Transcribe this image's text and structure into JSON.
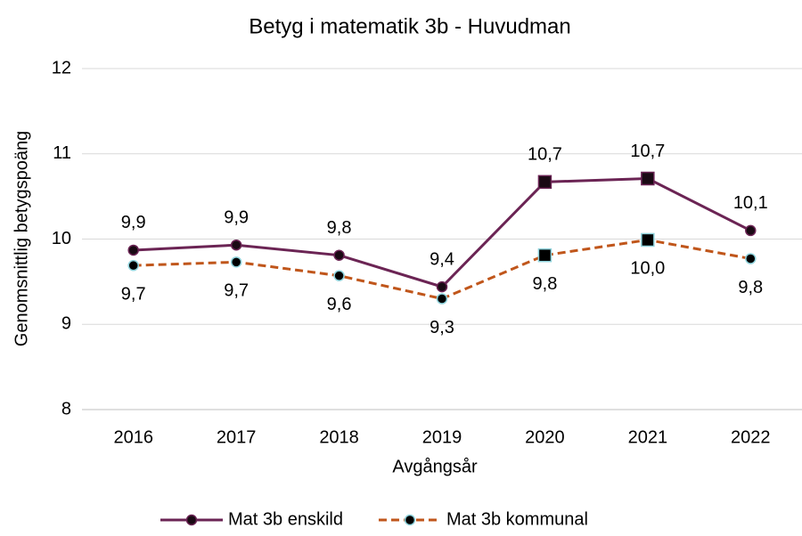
{
  "chart_data": {
    "type": "line",
    "title": "Betyg i matematik 3b - Huvudman",
    "x_label": "Avgångsår",
    "y_label": "Genomsnittlig betygspoäng",
    "categories": [
      "2016",
      "2017",
      "2018",
      "2019",
      "2020",
      "2021",
      "2022"
    ],
    "series": [
      {
        "name": "Mat 3b enskild",
        "color": "#6b2454",
        "marker_fill": "#1a0a14",
        "dash": false,
        "markers": [
          "circle",
          "circle",
          "circle",
          "circle",
          "square",
          "square",
          "circle"
        ],
        "values": [
          9.87,
          9.93,
          9.81,
          9.44,
          10.67,
          10.71,
          10.1
        ],
        "value_labels": [
          "9,9",
          "9,9",
          "9,8",
          "9,4",
          "10,7",
          "10,7",
          "10,1"
        ]
      },
      {
        "name": "Mat 3b kommunal",
        "color": "#c0561b",
        "marker_fill": "#000000",
        "marker_edge": "#8fd3dc",
        "dash": true,
        "markers": [
          "circle",
          "circle",
          "circle",
          "circle",
          "square",
          "square",
          "circle"
        ],
        "values": [
          9.69,
          9.73,
          9.57,
          9.3,
          9.81,
          9.99,
          9.77
        ],
        "value_labels": [
          "9,7",
          "9,7",
          "9,6",
          "9,3",
          "9,8",
          "10,0",
          "9,8"
        ]
      }
    ],
    "ylim": [
      8,
      12
    ],
    "yticks": [
      8,
      9,
      10,
      11,
      12
    ],
    "grid": true,
    "legend": "bottom"
  }
}
